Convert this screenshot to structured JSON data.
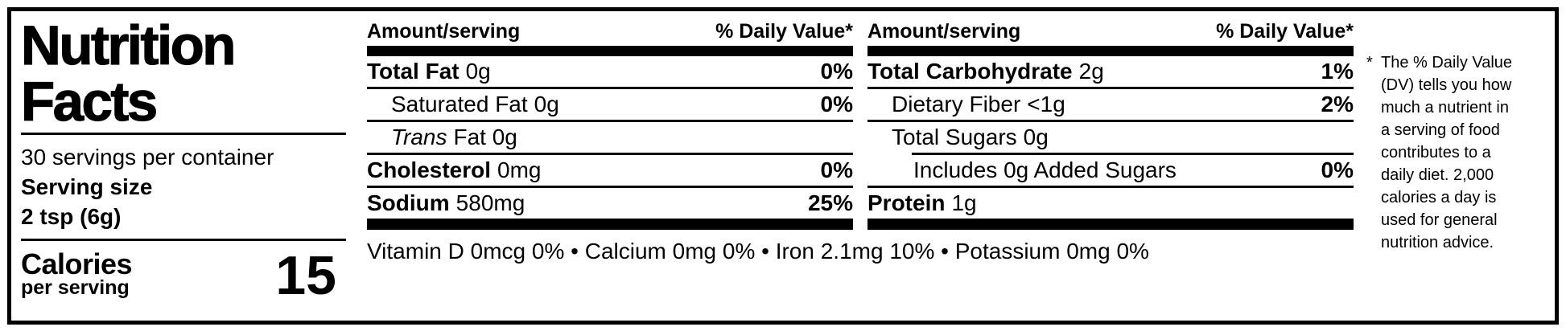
{
  "panel": {
    "title": "Nutrition\nFacts",
    "servings_per_container": "30 servings per container",
    "serving_size_label": "Serving size",
    "serving_size_value": "2 tsp (6g)",
    "calories_label": "Calories",
    "calories_sublabel": "per serving",
    "calories_value": "15"
  },
  "columns": [
    {
      "header_left": "Amount/serving",
      "header_right": "% Daily Value*",
      "rows": [
        {
          "name": "Total Fat",
          "amount": "0g",
          "dv": "0%"
        },
        {
          "name": "Saturated Fat",
          "amount": "0g",
          "dv": "0%"
        },
        {
          "name": "Trans",
          "amount": "Fat 0g",
          "dv": ""
        },
        {
          "name": "Cholesterol",
          "amount": "0mg",
          "dv": "0%"
        },
        {
          "name": "Sodium",
          "amount": "580mg",
          "dv": "25%"
        }
      ]
    },
    {
      "header_left": "Amount/serving",
      "header_right": "% Daily Value*",
      "rows": [
        {
          "name": "Total Carbohydrate",
          "amount": "2g",
          "dv": "1%"
        },
        {
          "name": "Dietary Fiber",
          "amount": "<1g",
          "dv": "2%"
        },
        {
          "name": "Total Sugars",
          "amount": "0g",
          "dv": ""
        },
        {
          "name": "Includes 0g Added Sugars",
          "amount": "",
          "dv": "0%"
        },
        {
          "name": "Protein",
          "amount": "1g",
          "dv": ""
        }
      ]
    }
  ],
  "micronutrients": "Vitamin D 0mcg 0% • Calcium 0mg 0% • Iron 2.1mg 10% • Potassium 0mg 0%",
  "footnote": {
    "symbol": "*",
    "text": "The % Daily Value\n(DV) tells you how\nmuch a nutrient in\na serving of food\ncontributes to a\ndaily diet. 2,000\ncalories a day is\nused for general\nnutrition advice."
  }
}
